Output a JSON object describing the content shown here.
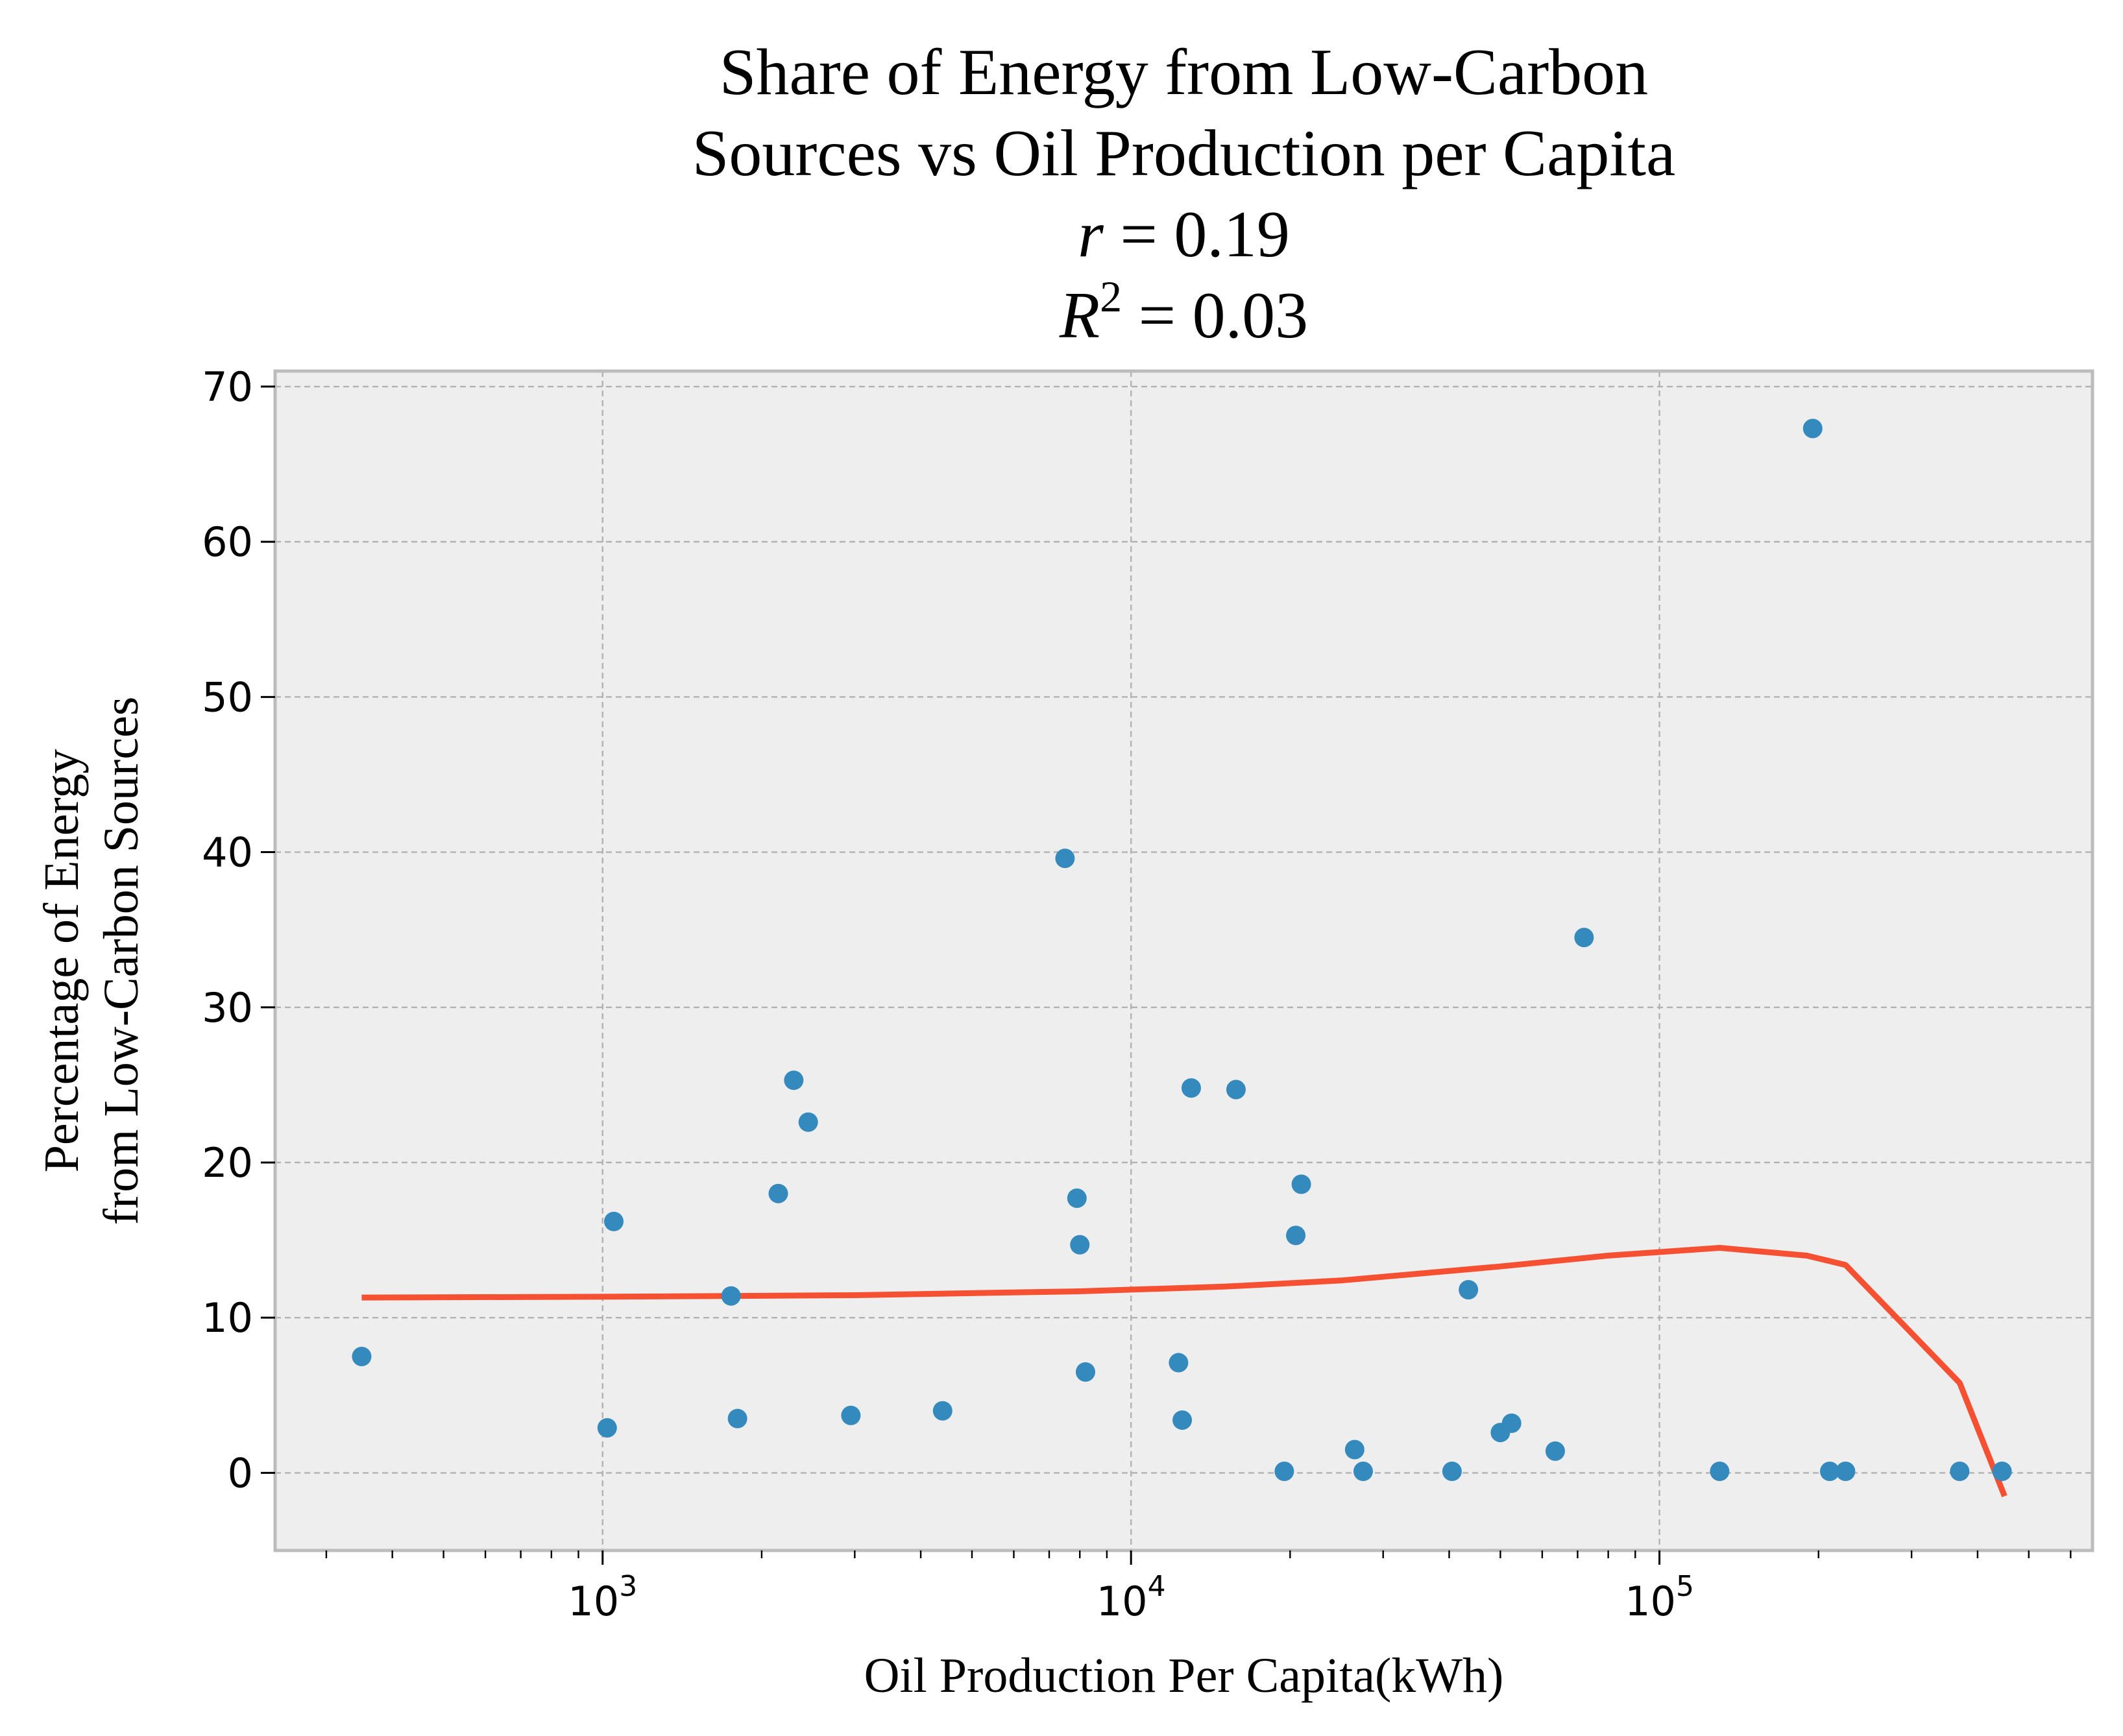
{
  "chart_data": {
    "type": "scatter",
    "title_lines": [
      "Share of Energy from Low-Carbon",
      "Sources vs Oil Production per Capita",
      "r = 0.19",
      "R2 = 0.03"
    ],
    "xlabel": "Oil Production Per Capita(kWh)",
    "ylabel_lines": [
      "Percentage of Energy",
      "from Low-Carbon Sources"
    ],
    "x_scale": "log",
    "xlim": [
      240,
      660000
    ],
    "ylim": [
      -5,
      71
    ],
    "x_major_ticks": [
      1000,
      10000,
      100000
    ],
    "x_major_labels": [
      {
        "base": "10",
        "exp": "3"
      },
      {
        "base": "10",
        "exp": "4"
      },
      {
        "base": "10",
        "exp": "5"
      }
    ],
    "y_ticks": [
      0,
      10,
      20,
      30,
      40,
      50,
      60,
      70
    ],
    "y_tick_labels": [
      "0",
      "10",
      "20",
      "30",
      "40",
      "50",
      "60",
      "70"
    ],
    "grid": true,
    "colors": {
      "background": "#eeeeee",
      "points": "#348abd",
      "trend": "#f65032",
      "grid": "#b2b2b2",
      "spine": "#bcbcbc"
    },
    "series": [
      {
        "kind": "points",
        "points": [
          [
            350,
            7.5
          ],
          [
            1020,
            2.9
          ],
          [
            1050,
            16.2
          ],
          [
            1750,
            11.4
          ],
          [
            1800,
            3.5
          ],
          [
            2150,
            18.0
          ],
          [
            2300,
            25.3
          ],
          [
            2450,
            22.6
          ],
          [
            2950,
            3.7
          ],
          [
            4400,
            4.0
          ],
          [
            7500,
            39.6
          ],
          [
            7900,
            17.7
          ],
          [
            8000,
            14.7
          ],
          [
            8200,
            6.5
          ],
          [
            12300,
            7.1
          ],
          [
            12500,
            3.4
          ],
          [
            13000,
            24.8
          ],
          [
            15800,
            24.7
          ],
          [
            19500,
            0.1
          ],
          [
            20500,
            15.3
          ],
          [
            21000,
            18.6
          ],
          [
            26500,
            1.5
          ],
          [
            27500,
            0.1
          ],
          [
            40500,
            0.1
          ],
          [
            43500,
            11.8
          ],
          [
            50000,
            2.6
          ],
          [
            52500,
            3.2
          ],
          [
            63500,
            1.4
          ],
          [
            72000,
            34.5
          ],
          [
            130000,
            0.1
          ],
          [
            195000,
            67.3
          ],
          [
            210000,
            0.1
          ],
          [
            225000,
            0.1
          ],
          [
            370000,
            0.1
          ],
          [
            445000,
            0.1
          ]
        ]
      },
      {
        "kind": "trend",
        "points": [
          [
            350,
            11.3
          ],
          [
            1000,
            11.35
          ],
          [
            3000,
            11.45
          ],
          [
            8000,
            11.7
          ],
          [
            15000,
            12.0
          ],
          [
            25000,
            12.4
          ],
          [
            50000,
            13.3
          ],
          [
            80000,
            14.0
          ],
          [
            130000,
            14.5
          ],
          [
            190000,
            14.0
          ],
          [
            225000,
            13.4
          ],
          [
            370000,
            5.8
          ],
          [
            450000,
            -1.5
          ]
        ]
      }
    ]
  }
}
